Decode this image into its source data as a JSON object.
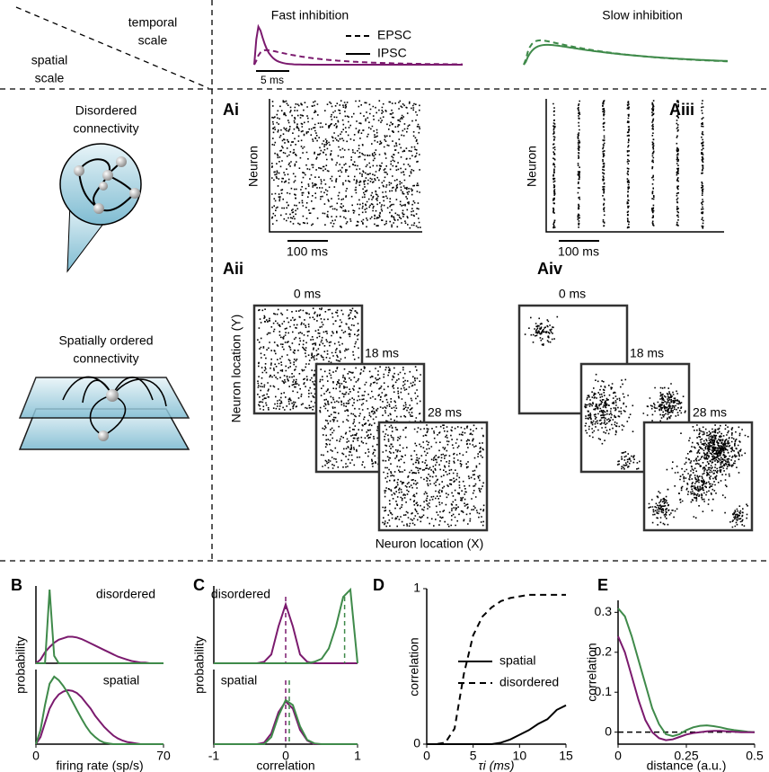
{
  "corner": {
    "top": [
      "temporal",
      "scale"
    ],
    "bottom": [
      "spatial",
      "scale"
    ]
  },
  "columns": {
    "fast": {
      "title": "Fast inhibition",
      "legend": [
        "EPSC",
        "IPSC"
      ],
      "scale_bar": "5 ms"
    },
    "slow": {
      "title": "Slow inhibition"
    }
  },
  "rows": {
    "disordered": [
      "Disordered",
      "connectivity"
    ],
    "spatial": [
      "Spatially ordered",
      "connectivity"
    ]
  },
  "panel_A": {
    "Ai": {
      "label": "Ai",
      "ylabel": "Neuron",
      "scale_bar": "100 ms"
    },
    "Aiii": {
      "label": "Aiii",
      "ylabel": "Neuron",
      "scale_bar": "100 ms"
    },
    "Aii": {
      "label": "Aii",
      "times": [
        "0 ms",
        "18 ms",
        "28 ms"
      ],
      "ylabel": "Neuron location (Y)",
      "xlabel": "Neuron location (X)"
    },
    "Aiv": {
      "label": "Aiv",
      "times": [
        "0 ms",
        "18 ms",
        "28 ms"
      ]
    }
  },
  "chart_data": [
    {
      "type": "line",
      "label": "B",
      "title": "disordered",
      "ylabel": "probability",
      "x": [
        0,
        2.5,
        5,
        7.5,
        10,
        12.5,
        15,
        17.5,
        20,
        22.5,
        25,
        27.5,
        30,
        32.5,
        35,
        37.5,
        40,
        42.5,
        45,
        47.5,
        50,
        52.5,
        55,
        57.5,
        60,
        62.5,
        65,
        67.5,
        70
      ],
      "xlim": [
        0,
        70
      ],
      "ylim": [
        0,
        1.05
      ],
      "series": [
        {
          "color": "#7b1a6e",
          "values": [
            0,
            0.05,
            0.15,
            0.22,
            0.28,
            0.32,
            0.34,
            0.36,
            0.36,
            0.35,
            0.33,
            0.3,
            0.27,
            0.24,
            0.21,
            0.18,
            0.15,
            0.12,
            0.09,
            0.07,
            0.05,
            0.03,
            0.02,
            0.01,
            0.01,
            0,
            0,
            0,
            0
          ]
        },
        {
          "color": "#3f8a4a",
          "values": [
            0,
            0,
            0,
            1.0,
            0.1,
            0,
            0,
            0,
            0,
            0,
            0,
            0,
            0,
            0,
            0,
            0,
            0,
            0,
            0,
            0,
            0,
            0,
            0,
            0,
            0,
            0,
            0,
            0,
            0
          ]
        }
      ]
    },
    {
      "type": "line",
      "title": "spatial",
      "xlabel": "firing rate (sp/s)",
      "x": [
        0,
        2.5,
        5,
        7.5,
        10,
        12.5,
        15,
        17.5,
        20,
        22.5,
        25,
        27.5,
        30,
        32.5,
        35,
        37.5,
        40,
        42.5,
        45,
        47.5,
        50,
        52.5,
        55,
        57.5,
        60,
        62.5,
        65,
        67.5,
        70
      ],
      "xlim": [
        0,
        70
      ],
      "xticks": [
        0,
        70
      ],
      "ylim": [
        0,
        1.05
      ],
      "series": [
        {
          "color": "#7b1a6e",
          "values": [
            0,
            0.1,
            0.3,
            0.5,
            0.62,
            0.7,
            0.74,
            0.76,
            0.75,
            0.72,
            0.66,
            0.58,
            0.5,
            0.4,
            0.32,
            0.24,
            0.18,
            0.12,
            0.08,
            0.05,
            0.03,
            0.02,
            0.01,
            0,
            0,
            0,
            0,
            0,
            0
          ]
        },
        {
          "color": "#3f8a4a",
          "values": [
            0,
            0.2,
            0.55,
            0.85,
            0.95,
            0.9,
            0.82,
            0.72,
            0.6,
            0.48,
            0.36,
            0.25,
            0.16,
            0.1,
            0.05,
            0.02,
            0.01,
            0,
            0,
            0,
            0,
            0,
            0,
            0,
            0,
            0,
            0,
            0,
            0
          ]
        }
      ]
    },
    {
      "type": "line",
      "label": "C",
      "title": "disordered",
      "ylabel": "probability",
      "x": [
        -1,
        -0.9,
        -0.8,
        -0.7,
        -0.6,
        -0.5,
        -0.4,
        -0.3,
        -0.2,
        -0.1,
        0,
        0.1,
        0.2,
        0.3,
        0.4,
        0.5,
        0.6,
        0.7,
        0.8,
        0.9,
        1
      ],
      "xlim": [
        -1,
        1
      ],
      "ylim": [
        0,
        1.05
      ],
      "series": [
        {
          "color": "#7b1a6e",
          "mean": 0,
          "values": [
            0,
            0,
            0,
            0,
            0,
            0,
            0,
            0.02,
            0.12,
            0.5,
            0.8,
            0.5,
            0.12,
            0.02,
            0,
            0,
            0,
            0,
            0,
            0,
            0
          ]
        },
        {
          "color": "#3f8a4a",
          "mean": 0.82,
          "values": [
            0,
            0,
            0,
            0,
            0,
            0,
            0,
            0,
            0,
            0,
            0,
            0,
            0,
            0,
            0.02,
            0.06,
            0.2,
            0.5,
            0.9,
            1.0,
            0
          ]
        }
      ]
    },
    {
      "type": "line",
      "title": "spatial",
      "xlabel": "correlation",
      "x": [
        -1,
        -0.9,
        -0.8,
        -0.7,
        -0.6,
        -0.5,
        -0.4,
        -0.3,
        -0.2,
        -0.1,
        0,
        0.1,
        0.2,
        0.3,
        0.4,
        0.5,
        0.6,
        0.7,
        0.8,
        0.9,
        1
      ],
      "xlim": [
        -1,
        1
      ],
      "xticks": [
        -1,
        0,
        1
      ],
      "ylim": [
        0,
        1.05
      ],
      "series": [
        {
          "color": "#7b1a6e",
          "mean": 0,
          "values": [
            0,
            0,
            0,
            0,
            0,
            0,
            0,
            0.02,
            0.15,
            0.45,
            0.6,
            0.5,
            0.2,
            0.05,
            0,
            0,
            0,
            0,
            0,
            0,
            0
          ]
        },
        {
          "color": "#3f8a4a",
          "mean": 0.05,
          "values": [
            0,
            0,
            0,
            0,
            0,
            0,
            0,
            0,
            0.1,
            0.4,
            0.62,
            0.55,
            0.25,
            0.06,
            0.01,
            0,
            0,
            0,
            0,
            0,
            0
          ]
        }
      ]
    },
    {
      "type": "line",
      "label": "D",
      "ylabel": "correlation",
      "xlabel": "τi (ms)",
      "x": [
        0,
        1,
        2,
        3,
        4,
        5,
        6,
        7,
        8,
        9,
        10,
        11,
        12,
        13,
        14,
        15
      ],
      "xlim": [
        0,
        15
      ],
      "xticks": [
        0,
        5,
        10,
        15
      ],
      "ylim": [
        0,
        1
      ],
      "yticks": [
        0,
        1
      ],
      "series": [
        {
          "name": "spatial",
          "color": "#000000",
          "dash": false,
          "values": [
            0,
            0,
            0,
            0,
            0,
            0,
            0,
            0,
            0.01,
            0.03,
            0.06,
            0.09,
            0.13,
            0.16,
            0.22,
            0.25
          ]
        },
        {
          "name": "disordered",
          "color": "#000000",
          "dash": true,
          "values": [
            0,
            0,
            0.01,
            0.1,
            0.45,
            0.7,
            0.82,
            0.88,
            0.92,
            0.94,
            0.95,
            0.96,
            0.96,
            0.96,
            0.96,
            0.96
          ]
        }
      ]
    },
    {
      "type": "line",
      "label": "E",
      "ylabel": "correlation",
      "xlabel": "distance (a.u.)",
      "x": [
        0,
        0.025,
        0.05,
        0.075,
        0.1,
        0.125,
        0.15,
        0.175,
        0.2,
        0.225,
        0.25,
        0.275,
        0.3,
        0.325,
        0.35,
        0.375,
        0.4,
        0.425,
        0.45,
        0.475,
        0.5
      ],
      "xlim": [
        0,
        0.5
      ],
      "xticks": [
        0,
        0.25,
        0.5
      ],
      "ylim": [
        -0.03,
        0.33
      ],
      "yticks": [
        0,
        0.1,
        0.2,
        0.3
      ],
      "reference_line": 0,
      "series": [
        {
          "color": "#3f8a4a",
          "values": [
            0.31,
            0.29,
            0.24,
            0.18,
            0.12,
            0.06,
            0.02,
            -0.005,
            -0.01,
            -0.005,
            0.005,
            0.012,
            0.016,
            0.017,
            0.015,
            0.012,
            0.008,
            0.005,
            0.003,
            0.001,
            0
          ]
        },
        {
          "color": "#7b1a6e",
          "values": [
            0.24,
            0.2,
            0.14,
            0.08,
            0.03,
            0,
            -0.015,
            -0.02,
            -0.018,
            -0.012,
            -0.006,
            -0.002,
            0,
            0.002,
            0.003,
            0.003,
            0.002,
            0.001,
            0,
            0,
            0
          ]
        }
      ]
    }
  ]
}
